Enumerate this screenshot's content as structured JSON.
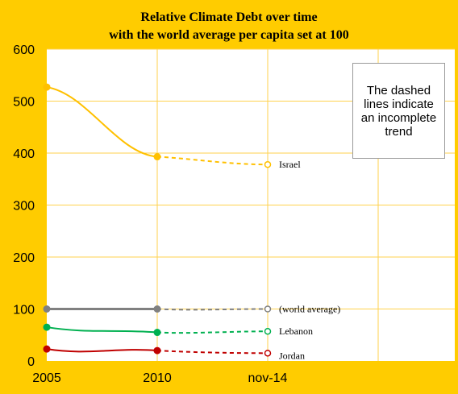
{
  "chart_data": {
    "type": "line",
    "title_line1": "Relative Climate Debt over time",
    "title_line2": "with the world average per capita set at 100",
    "categories": [
      "2005",
      "2010",
      "nov-14"
    ],
    "ylim": [
      0,
      600
    ],
    "yticks": [
      "0",
      "100",
      "200",
      "300",
      "400",
      "500",
      "600"
    ],
    "grid": true,
    "note": "The dashed lines indicate an incomplete trend",
    "series": [
      {
        "name": "Israel",
        "values": [
          527,
          393,
          378
        ],
        "color": "#ffc000"
      },
      {
        "name": "(world average)",
        "values": [
          100,
          100,
          100
        ],
        "color": "#808080"
      },
      {
        "name": "Lebanon",
        "values": [
          65,
          55,
          57
        ],
        "color": "#00b050"
      },
      {
        "name": "Jordan",
        "values": [
          23,
          20,
          15
        ],
        "color": "#c00000"
      }
    ]
  }
}
